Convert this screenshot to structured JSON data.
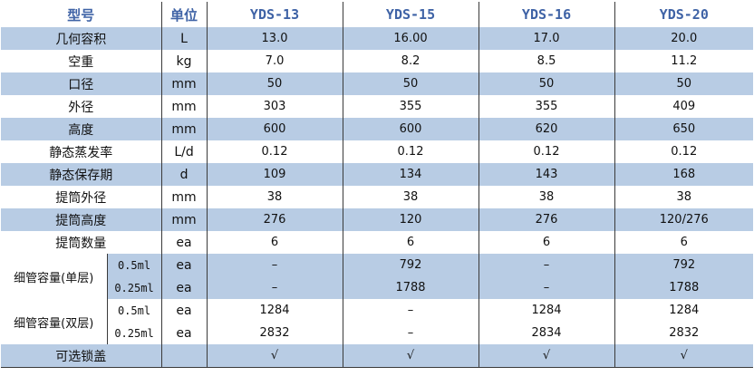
{
  "header": {
    "model_label": "型号",
    "unit_label": "单位",
    "models": [
      "YDS-13",
      "YDS-15",
      "YDS-16",
      "YDS-20"
    ]
  },
  "rows": [
    {
      "label": "几何容积",
      "unit": "L",
      "values": [
        "13.0",
        "16.00",
        "17.0",
        "20.0"
      ]
    },
    {
      "label": "空重",
      "unit": "kg",
      "values": [
        "7.0",
        "8.2",
        "8.5",
        "11.2"
      ]
    },
    {
      "label": "口径",
      "unit": "mm",
      "values": [
        "50",
        "50",
        "50",
        "50"
      ]
    },
    {
      "label": "外径",
      "unit": "mm",
      "values": [
        "303",
        "355",
        "355",
        "409"
      ]
    },
    {
      "label": "高度",
      "unit": "mm",
      "values": [
        "600",
        "600",
        "620",
        "650"
      ]
    },
    {
      "label": "静态蒸发率",
      "unit": "L/d",
      "values": [
        "0.12",
        "0.12",
        "0.12",
        "0.12"
      ]
    },
    {
      "label": "静态保存期",
      "unit": "d",
      "values": [
        "109",
        "134",
        "143",
        "168"
      ]
    },
    {
      "label": "提筒外径",
      "unit": "mm",
      "values": [
        "38",
        "38",
        "38",
        "38"
      ]
    },
    {
      "label": "提筒高度",
      "unit": "mm",
      "values": [
        "276",
        "120",
        "276",
        "120/276"
      ]
    },
    {
      "label": "提筒数量",
      "unit": "ea",
      "values": [
        "6",
        "6",
        "6",
        "6"
      ]
    }
  ],
  "single_layer": {
    "label": "细管容量(单层)",
    "rows": [
      {
        "sub": "0.5ml",
        "unit": "ea",
        "values": [
          "–",
          "792",
          "–",
          "792"
        ]
      },
      {
        "sub": "0.25ml",
        "unit": "ea",
        "values": [
          "–",
          "1788",
          "–",
          "1788"
        ]
      }
    ]
  },
  "double_layer": {
    "label": "细管容量(双层)",
    "rows": [
      {
        "sub": "0.5ml",
        "unit": "ea",
        "values": [
          "1284",
          "–",
          "1284",
          "1284"
        ]
      },
      {
        "sub": "0.25ml",
        "unit": "ea",
        "values": [
          "2832",
          "–",
          "2834",
          "2832"
        ]
      }
    ]
  },
  "lock_row": {
    "label": "可选锁盖",
    "unit": "",
    "values": [
      "√",
      "√",
      "√",
      "√"
    ]
  }
}
